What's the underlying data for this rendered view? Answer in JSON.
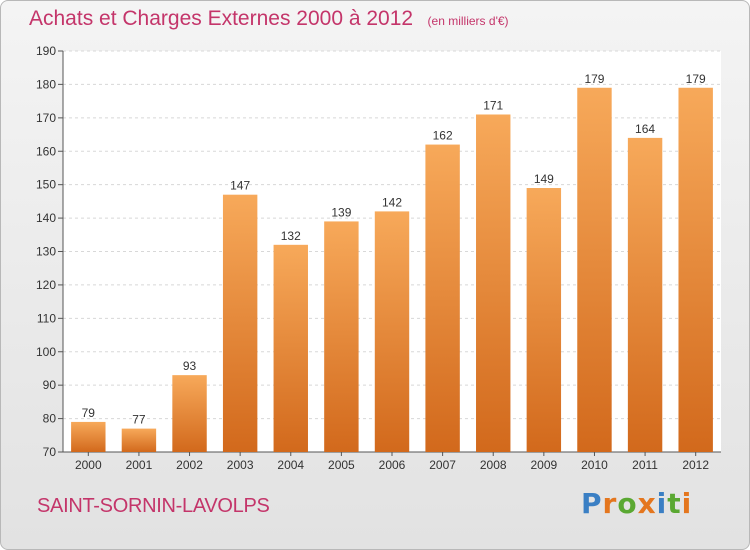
{
  "header": {
    "title": "Achats et Charges Externes 2000 à 2012",
    "unit": "(en milliers d'€)"
  },
  "footer": {
    "commune": "SAINT-SORNIN-LAVOLPS",
    "brand_letters": [
      {
        "char": "P",
        "color": "#3a7fc4"
      },
      {
        "char": "r",
        "color": "#e4761e"
      },
      {
        "char": "o",
        "color": "#5aa832"
      },
      {
        "char": "x",
        "color": "#e4761e"
      },
      {
        "char": "i",
        "color": "#3a7fc4"
      },
      {
        "char": "t",
        "color": "#5aa832"
      },
      {
        "char": "i",
        "color": "#e4761e"
      }
    ]
  },
  "colors": {
    "bar_top": "#f7a95a",
    "bar_bottom": "#d2691c",
    "title": "#c4356a"
  },
  "chart_data": {
    "type": "bar",
    "title": "Achats et Charges Externes 2000 à 2012",
    "subtitle": "(en milliers d'€)",
    "categories": [
      "2000",
      "2001",
      "2002",
      "2003",
      "2004",
      "2005",
      "2006",
      "2007",
      "2008",
      "2009",
      "2010",
      "2011",
      "2012"
    ],
    "values": [
      79,
      77,
      93,
      147,
      132,
      139,
      142,
      162,
      171,
      149,
      179,
      164,
      179
    ],
    "ylim": [
      70,
      190
    ],
    "yticks": [
      70,
      80,
      90,
      100,
      110,
      120,
      130,
      140,
      150,
      160,
      170,
      180,
      190
    ],
    "grid": true,
    "data_labels": true
  }
}
